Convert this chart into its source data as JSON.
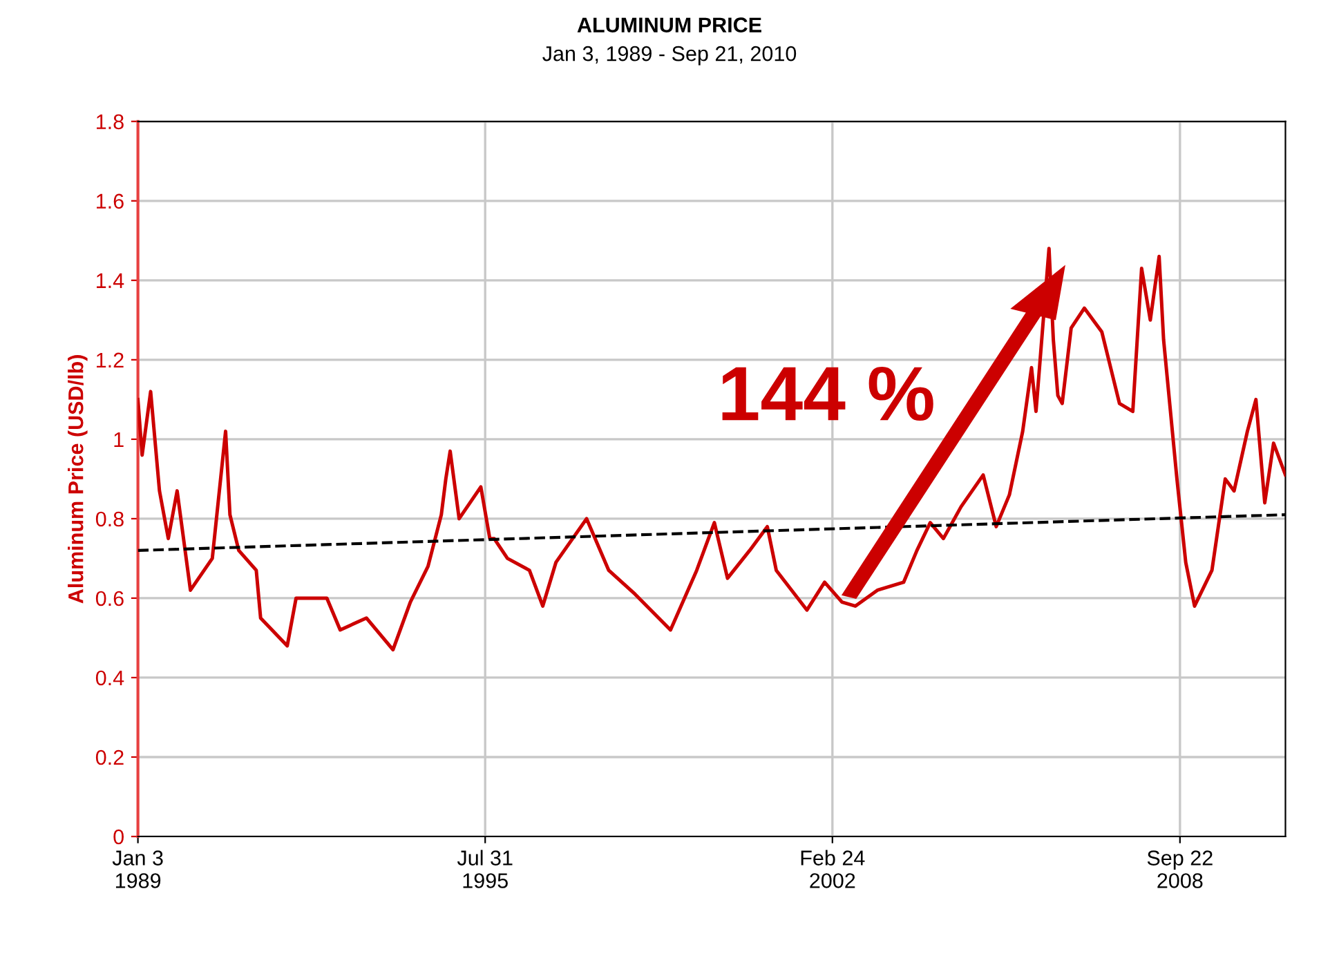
{
  "chart_data": {
    "type": "line",
    "title": "ALUMINUM PRICE",
    "subtitle": "Jan 3, 1989 - Sep 21, 2010",
    "ylabel": "Aluminum Price (USD/lb)",
    "annotations": [
      "144 %"
    ],
    "xlim": [
      "1989-01-03",
      "2010-09-21"
    ],
    "xticks": [
      {
        "value": "1989-01-03",
        "label": "Jan 3\n1989"
      },
      {
        "value": "1995-07-31",
        "label": "Jul 31\n1995"
      },
      {
        "value": "2002-02-24",
        "label": "Feb 24\n2002"
      },
      {
        "value": "2008-09-22",
        "label": "Sep 22\n2008"
      }
    ],
    "ylim": [
      0,
      1.8
    ],
    "yticks": [
      0,
      0.2,
      0.4,
      0.6,
      0.8,
      1,
      1.2,
      1.4,
      1.6,
      1.8
    ],
    "grid": true,
    "series": [
      {
        "color": "#cc0000",
        "line_style": "solid",
        "x": [
          "1989-01-03",
          "1989-02",
          "1989-04",
          "1989-06",
          "1989-08",
          "1989-10",
          "1990-01",
          "1990-06",
          "1990-09",
          "1990-10",
          "1990-12",
          "1991-04",
          "1991-05",
          "1991-11",
          "1992-01",
          "1992-08",
          "1992-11",
          "1993-05",
          "1993-11",
          "1994-03",
          "1994-07",
          "1994-10",
          "1994-11",
          "1994-12",
          "1995-02",
          "1995-07",
          "1995-09",
          "1995-10",
          "1996-01",
          "1996-06",
          "1996-09",
          "1996-12",
          "1997-07",
          "1997-12",
          "1998-06",
          "1999-02",
          "1999-08",
          "1999-12",
          "2000-03",
          "2000-08",
          "2000-12",
          "2001-02",
          "2001-09",
          "2002-01",
          "2002-05",
          "2002-08",
          "2003-01",
          "2003-07",
          "2003-10",
          "2004-01",
          "2004-04",
          "2004-08",
          "2005-01",
          "2005-04",
          "2005-07",
          "2005-10",
          "2005-12",
          "2006-01",
          "2006-04",
          "2006-05",
          "2006-06",
          "2006-07",
          "2006-09",
          "2006-12",
          "2007-04",
          "2007-08",
          "2007-11",
          "2008-01",
          "2008-03",
          "2008-05",
          "2008-06",
          "2008-09",
          "2008-11",
          "2009-01",
          "2009-05",
          "2009-08",
          "2009-10",
          "2010-01",
          "2010-03",
          "2010-05",
          "2010-07",
          "2010-09-21"
        ],
        "values": [
          1.1,
          0.96,
          1.12,
          0.87,
          0.75,
          0.87,
          0.62,
          0.7,
          1.02,
          0.81,
          0.72,
          0.67,
          0.55,
          0.48,
          0.6,
          0.6,
          0.52,
          0.55,
          0.47,
          0.59,
          0.68,
          0.81,
          0.9,
          0.97,
          0.8,
          0.88,
          0.75,
          0.75,
          0.7,
          0.67,
          0.58,
          0.69,
          0.8,
          0.67,
          0.61,
          0.52,
          0.67,
          0.79,
          0.65,
          0.72,
          0.78,
          0.67,
          0.57,
          0.64,
          0.59,
          0.58,
          0.62,
          0.64,
          0.72,
          0.79,
          0.75,
          0.83,
          0.91,
          0.78,
          0.86,
          1.02,
          1.18,
          1.07,
          1.48,
          1.25,
          1.11,
          1.09,
          1.28,
          1.33,
          1.27,
          1.09,
          1.07,
          1.43,
          1.3,
          1.46,
          1.25,
          0.9,
          0.69,
          0.58,
          0.67,
          0.9,
          0.87,
          1.02,
          1.1,
          0.84,
          0.99,
          0.91
        ]
      },
      {
        "color": "#000000",
        "line_style": "dashed",
        "x": [
          "1989-01-03",
          "2010-09-21"
        ],
        "values": [
          0.72,
          0.81
        ]
      }
    ]
  }
}
